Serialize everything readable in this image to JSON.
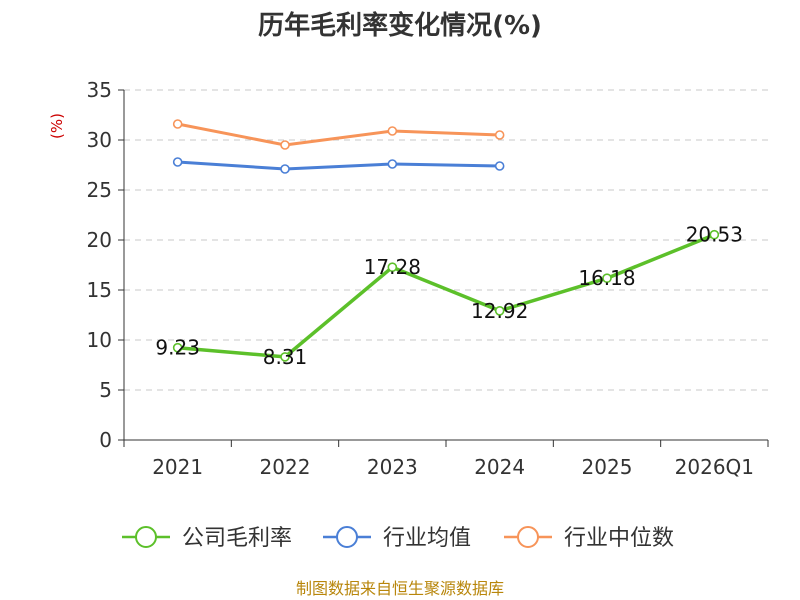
{
  "chart_data": {
    "type": "line",
    "title": "历年毛利率变化情况(%)",
    "unit_label": "(%)",
    "categories": [
      "2021",
      "2022",
      "2023",
      "2024",
      "2025",
      "2026Q1"
    ],
    "ylim": [
      0,
      35
    ],
    "yticks": [
      "0",
      "5",
      "10",
      "15",
      "20",
      "25",
      "30",
      "35"
    ],
    "grid": true,
    "legend_position": "bottom",
    "series": [
      {
        "name": "公司毛利率",
        "color": "#5cc02a",
        "values": [
          9.23,
          8.31,
          17.28,
          12.92,
          16.18,
          20.53
        ],
        "labels": [
          "9.23",
          "8.31",
          "17.28",
          "12.92",
          "16.18",
          "20.53"
        ]
      },
      {
        "name": "行业均值",
        "color": "#4a7fd6",
        "values": [
          27.8,
          27.1,
          27.6,
          27.4,
          null,
          null
        ]
      },
      {
        "name": "行业中位数",
        "color": "#f79459",
        "values": [
          31.6,
          29.5,
          30.9,
          30.5,
          null,
          null
        ]
      }
    ],
    "source": "制图数据来自恒生聚源数据库"
  }
}
